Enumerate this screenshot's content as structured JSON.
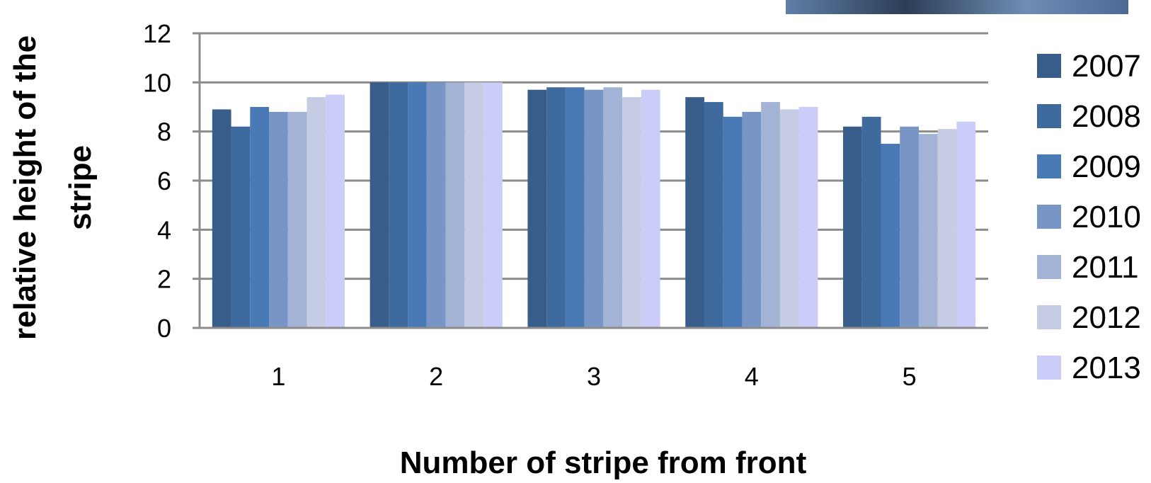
{
  "chart_data": {
    "type": "bar",
    "title": "",
    "xlabel": "Number of stripe from front",
    "ylabel_lines": [
      "relative height of the",
      "stripe"
    ],
    "categories": [
      "1",
      "2",
      "3",
      "4",
      "5"
    ],
    "ylim": [
      0,
      12
    ],
    "yticks": [
      0,
      2,
      4,
      6,
      8,
      10,
      12
    ],
    "grid": true,
    "legend_position": "right",
    "series": [
      {
        "name": "2007",
        "color": "#385d8a",
        "values": [
          8.9,
          10.0,
          9.7,
          9.4,
          8.2
        ]
      },
      {
        "name": "2008",
        "color": "#3f6a9e",
        "values": [
          8.2,
          10.0,
          9.8,
          9.2,
          8.6
        ]
      },
      {
        "name": "2009",
        "color": "#4a7ab5",
        "values": [
          9.0,
          10.0,
          9.8,
          8.6,
          7.5
        ]
      },
      {
        "name": "2010",
        "color": "#7796c6",
        "values": [
          8.8,
          10.0,
          9.7,
          8.8,
          8.2
        ]
      },
      {
        "name": "2011",
        "color": "#a2b3d5",
        "values": [
          8.8,
          10.0,
          9.8,
          9.2,
          7.9
        ]
      },
      {
        "name": "2012",
        "color": "#c5cce3",
        "values": [
          9.4,
          10.0,
          9.4,
          8.9,
          8.1
        ]
      },
      {
        "name": "2013",
        "color": "#ccccf8",
        "values": [
          9.5,
          10.0,
          9.7,
          9.0,
          8.4
        ]
      }
    ]
  }
}
